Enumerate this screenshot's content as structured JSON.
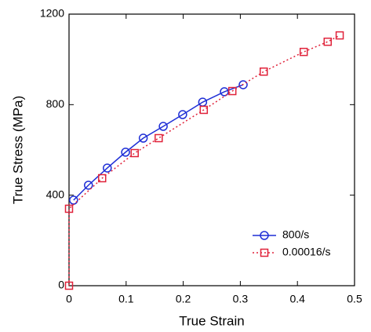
{
  "chart_data": {
    "type": "line",
    "x_label": "True Strain",
    "y_label": "True Stress (MPa)",
    "xlim": [
      0,
      0.5
    ],
    "xticks": [
      0,
      0.1,
      0.2,
      0.3,
      0.4,
      0.5
    ],
    "ylim": [
      0,
      1200
    ],
    "yticks": [
      0,
      400,
      800,
      1200
    ],
    "legend": "lower right",
    "series": [
      {
        "name": "800/s",
        "color": "#1f2fd6",
        "marker": "circle",
        "dash": "solid",
        "x": [
          0.008,
          0.034,
          0.067,
          0.099,
          0.13,
          0.165,
          0.199,
          0.234,
          0.272,
          0.305
        ],
        "values": [
          378,
          444,
          520,
          590,
          652,
          704,
          756,
          811,
          857,
          888
        ]
      },
      {
        "name": "0.00016/s",
        "color": "#e0223a",
        "marker": "square",
        "dash": "dotted",
        "x": [
          0,
          0,
          0.058,
          0.115,
          0.157,
          0.236,
          0.286,
          0.341,
          0.411,
          0.453,
          0.474
        ],
        "values": [
          0,
          340,
          475,
          586,
          652,
          777,
          860,
          946,
          1033,
          1078,
          1106
        ]
      }
    ]
  }
}
